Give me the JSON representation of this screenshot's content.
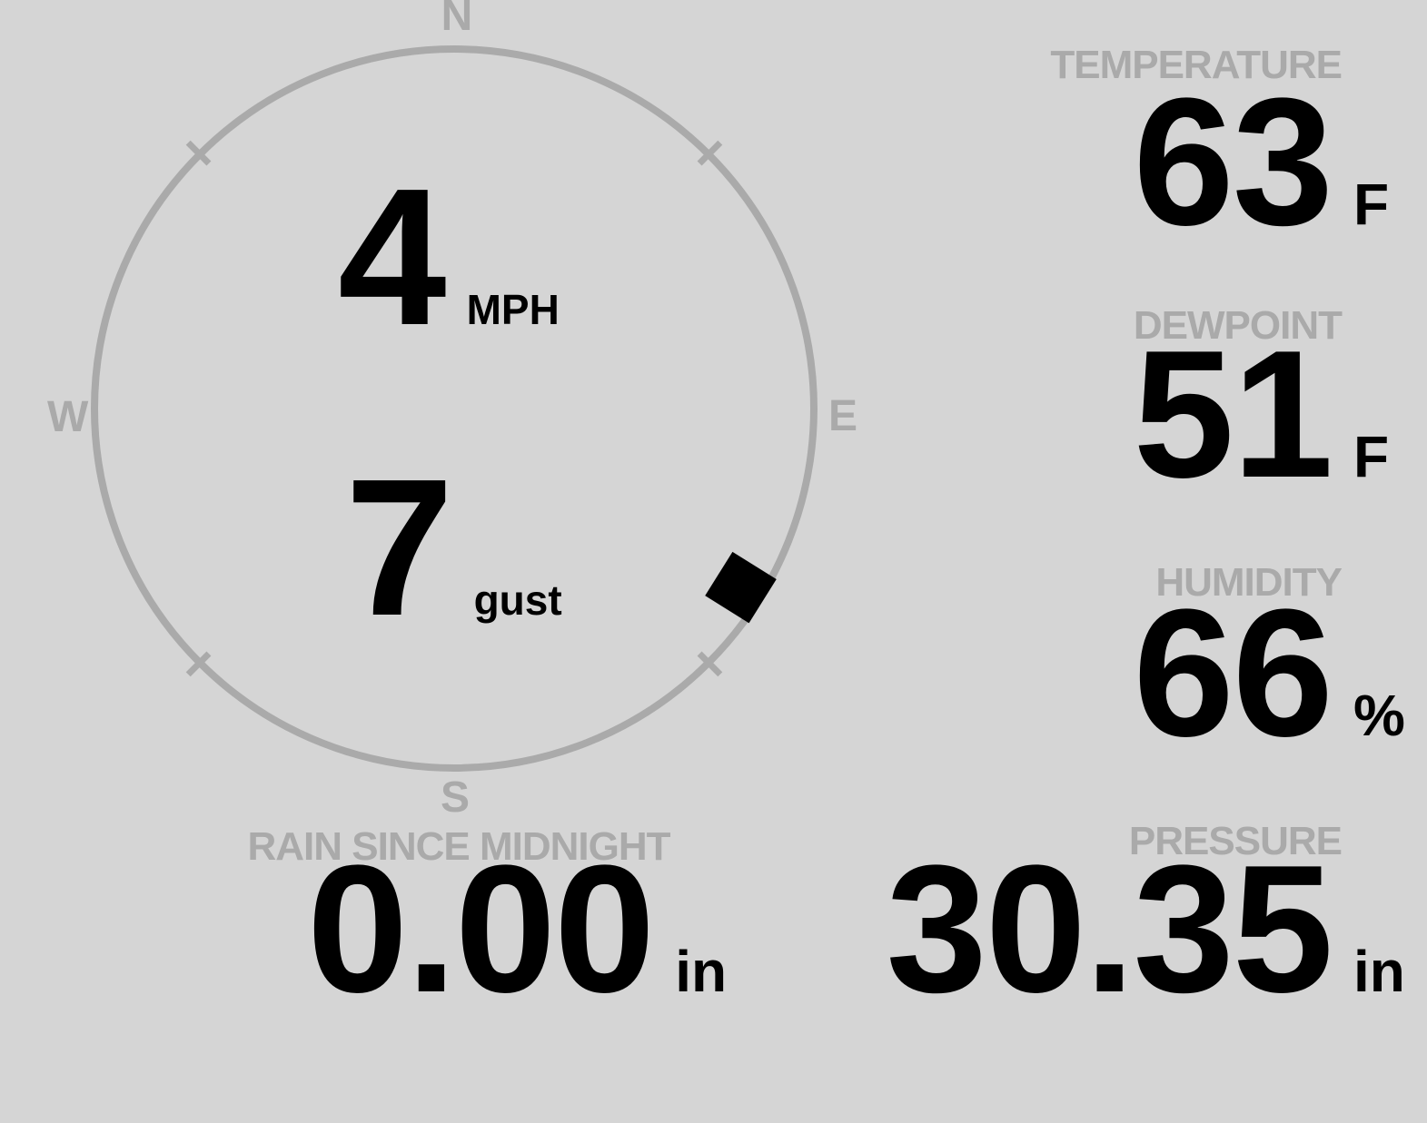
{
  "theme": {
    "background": "#d5d5d5",
    "muted": "#aaaaaa",
    "foreground": "#000000"
  },
  "wind": {
    "speed": "4",
    "speed_unit": "MPH",
    "gust": "7",
    "gust_label": "gust",
    "direction_degrees": 122,
    "compass": {
      "north": "N",
      "east": "E",
      "south": "S",
      "west": "W"
    }
  },
  "temperature": {
    "label": "TEMPERATURE",
    "value": "63",
    "unit": "F"
  },
  "dewpoint": {
    "label": "DEWPOINT",
    "value": "51",
    "unit": "F"
  },
  "humidity": {
    "label": "HUMIDITY",
    "value": "66",
    "unit": "%"
  },
  "rain": {
    "label": "RAIN SINCE MIDNIGHT",
    "value": "0.00",
    "unit": "in"
  },
  "pressure": {
    "label": "PRESSURE",
    "value": "30.35",
    "unit": "in"
  }
}
